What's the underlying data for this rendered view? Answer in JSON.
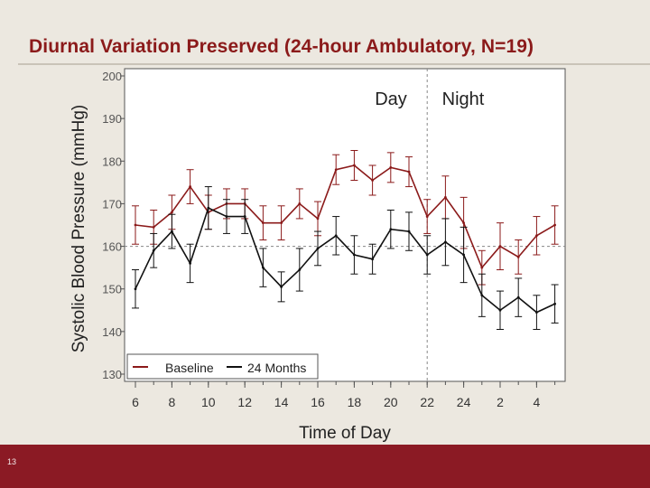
{
  "slide": {
    "title": "Diurnal Variation Preserved (24-hour Ambulatory, N=19)",
    "number": "13"
  },
  "colors": {
    "baseline": "#8b1a1a",
    "months24": "#111111",
    "footer": "#8b1a24",
    "background": "#ece8e0",
    "plot_bg": "#ffffff"
  },
  "chart_data": {
    "type": "line",
    "xlabel": "Time of Day",
    "ylabel": "Systolic Blood Pressure (mmHg)",
    "ylim": [
      130,
      200
    ],
    "yticks": [
      130,
      140,
      150,
      160,
      170,
      180,
      190,
      200
    ],
    "xtick_labels": [
      "6",
      "8",
      "10",
      "12",
      "14",
      "16",
      "18",
      "20",
      "22",
      "24",
      "2",
      "4"
    ],
    "x_positions_hours": [
      6,
      7,
      8,
      9,
      10,
      11,
      12,
      13,
      14,
      15,
      16,
      17,
      18,
      19,
      20,
      21,
      22,
      23,
      24,
      25,
      26,
      27,
      28,
      29
    ],
    "reference_line_y": 160,
    "day_night_divider_x": 22,
    "annotations": [
      "Day",
      "Night"
    ],
    "legend_position": "bottom-left",
    "series": [
      {
        "name": "Baseline",
        "values": [
          165,
          164.5,
          168,
          174,
          168,
          170,
          170,
          165.5,
          165.5,
          170,
          166.5,
          178,
          179,
          175.5,
          178.5,
          177.5,
          167,
          171.5,
          165.5,
          155,
          160,
          157.5,
          162.5,
          165
        ],
        "err": [
          4.5,
          4,
          4,
          4,
          4,
          3.5,
          3.5,
          4,
          4,
          3.5,
          4,
          3.5,
          3.5,
          3.5,
          3.5,
          3.5,
          4,
          5,
          6,
          4,
          5.5,
          4,
          4.5,
          4.5
        ]
      },
      {
        "name": "24 Months",
        "values": [
          150,
          159,
          163.5,
          156,
          169,
          167,
          167,
          155,
          150.5,
          154.5,
          159.5,
          162.5,
          158,
          157,
          164,
          163.5,
          158,
          161,
          158,
          148.5,
          145,
          148,
          144.5,
          146.5
        ],
        "err": [
          4.5,
          4,
          4,
          4.5,
          5,
          4,
          4,
          4.5,
          3.5,
          5,
          4,
          4.5,
          4.5,
          3.5,
          4.5,
          4.5,
          4.5,
          5.5,
          6.5,
          5,
          4.5,
          4.5,
          4,
          4.5
        ]
      }
    ]
  }
}
